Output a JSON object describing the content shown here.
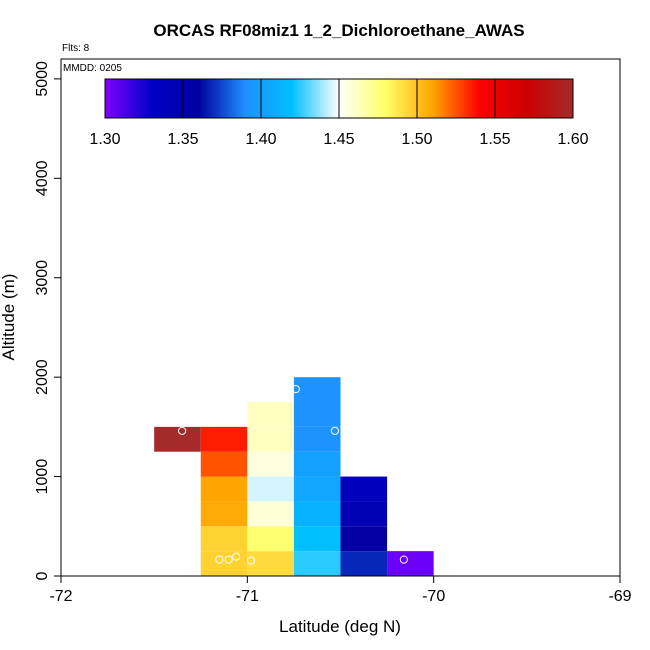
{
  "chart_data": {
    "type": "heatmap",
    "title": "ORCAS RF08miz1 1_2_Dichloroethane_AWAS",
    "flights_label": "Flts: 8",
    "mmdd_label": "MMDD: 0205",
    "xlabel": "Latitude (deg N)",
    "ylabel": "Altitude (m)",
    "xlim": [
      -72,
      -69
    ],
    "ylim": [
      0,
      5200
    ],
    "x_ticks": [
      "-72",
      "-71",
      "-70",
      "-69"
    ],
    "y_ticks": [
      "0",
      "1000",
      "2000",
      "3000",
      "4000",
      "5000"
    ],
    "colorbar": {
      "min": 1.3,
      "max": 1.6,
      "ticks": [
        "1.30",
        "1.35",
        "1.40",
        "1.45",
        "1.50",
        "1.55",
        "1.60"
      ],
      "stops": [
        "#7F00FF",
        "#0000C8",
        "#0000A0",
        "#1E90FF",
        "#00BFFF",
        "#FFFFFF",
        "#FFFF66",
        "#FFA500",
        "#FF0000",
        "#CD0000",
        "#A52A2A"
      ]
    },
    "cell_width_deg": 0.25,
    "cell_height_m": 250,
    "cells": [
      {
        "lat": -71.5,
        "alt": 1250,
        "value": 1.6
      },
      {
        "lat": -71.25,
        "alt": 0,
        "value": 1.495
      },
      {
        "lat": -71.25,
        "alt": 250,
        "value": 1.495
      },
      {
        "lat": -71.25,
        "alt": 500,
        "value": 1.508
      },
      {
        "lat": -71.25,
        "alt": 750,
        "value": 1.51
      },
      {
        "lat": -71.25,
        "alt": 1000,
        "value": 1.525
      },
      {
        "lat": -71.25,
        "alt": 1250,
        "value": 1.535
      },
      {
        "lat": -71.0,
        "alt": 0,
        "value": 1.492
      },
      {
        "lat": -71.0,
        "alt": 250,
        "value": 1.478
      },
      {
        "lat": -71.0,
        "alt": 500,
        "value": 1.458
      },
      {
        "lat": -71.0,
        "alt": 750,
        "value": 1.445
      },
      {
        "lat": -71.0,
        "alt": 1000,
        "value": 1.456
      },
      {
        "lat": -71.0,
        "alt": 1250,
        "value": 1.462
      },
      {
        "lat": -71.0,
        "alt": 1500,
        "value": 1.462
      },
      {
        "lat": -70.75,
        "alt": 0,
        "value": 1.425
      },
      {
        "lat": -70.75,
        "alt": 250,
        "value": 1.42
      },
      {
        "lat": -70.75,
        "alt": 500,
        "value": 1.412
      },
      {
        "lat": -70.75,
        "alt": 750,
        "value": 1.405
      },
      {
        "lat": -70.75,
        "alt": 1000,
        "value": 1.4
      },
      {
        "lat": -70.75,
        "alt": 1250,
        "value": 1.392
      },
      {
        "lat": -70.75,
        "alt": 1500,
        "value": 1.392
      },
      {
        "lat": -70.75,
        "alt": 1750,
        "value": 1.392
      },
      {
        "lat": -70.5,
        "alt": 0,
        "value": 1.368
      },
      {
        "lat": -70.5,
        "alt": 250,
        "value": 1.358
      },
      {
        "lat": -70.5,
        "alt": 500,
        "value": 1.345
      },
      {
        "lat": -70.5,
        "alt": 750,
        "value": 1.34
      },
      {
        "lat": -70.25,
        "alt": 0,
        "value": 1.305
      }
    ],
    "samples": [
      {
        "lat": -71.35,
        "alt": 1460
      },
      {
        "lat": -71.15,
        "alt": 165
      },
      {
        "lat": -71.1,
        "alt": 165
      },
      {
        "lat": -71.06,
        "alt": 195
      },
      {
        "lat": -70.98,
        "alt": 155
      },
      {
        "lat": -70.74,
        "alt": 1880
      },
      {
        "lat": -70.53,
        "alt": 1460
      },
      {
        "lat": -70.16,
        "alt": 165
      }
    ]
  }
}
